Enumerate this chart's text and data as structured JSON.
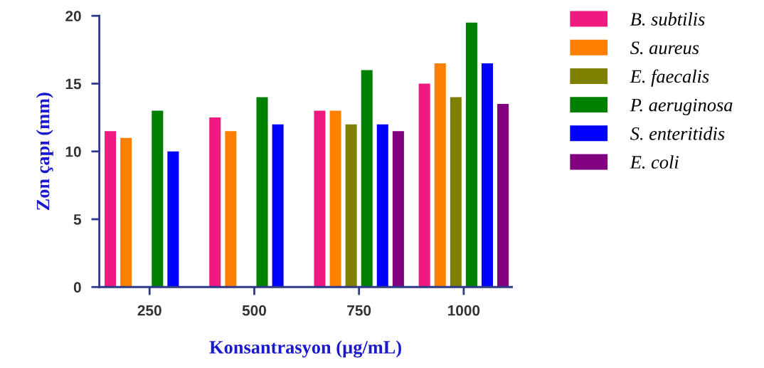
{
  "chart_data": {
    "type": "bar",
    "xlabel": "Konsantrasyon (µg/mL)",
    "ylabel": "Zon çapı (mm)",
    "categories": [
      "250",
      "500",
      "750",
      "1000"
    ],
    "series": [
      {
        "name": "B. subtilis",
        "color": "#f0197f",
        "values": [
          11.5,
          12.5,
          13,
          15
        ]
      },
      {
        "name": "S. aureus",
        "color": "#ff8000",
        "values": [
          11,
          11.5,
          13,
          16.5
        ]
      },
      {
        "name": "E. faecalis",
        "color": "#808000",
        "values": [
          null,
          null,
          12,
          14
        ]
      },
      {
        "name": "P. aeruginosa",
        "color": "#008000",
        "values": [
          13,
          14,
          16,
          19.5
        ]
      },
      {
        "name": "S. enteritidis",
        "color": "#0000ff",
        "values": [
          10,
          12,
          12,
          16.5
        ]
      },
      {
        "name": "E. coli",
        "color": "#800080",
        "values": [
          null,
          null,
          11.5,
          13.5
        ]
      }
    ],
    "ylim": [
      0,
      20
    ],
    "yticks": [
      0,
      5,
      10,
      15,
      20
    ],
    "grid": false,
    "legend": "right"
  }
}
